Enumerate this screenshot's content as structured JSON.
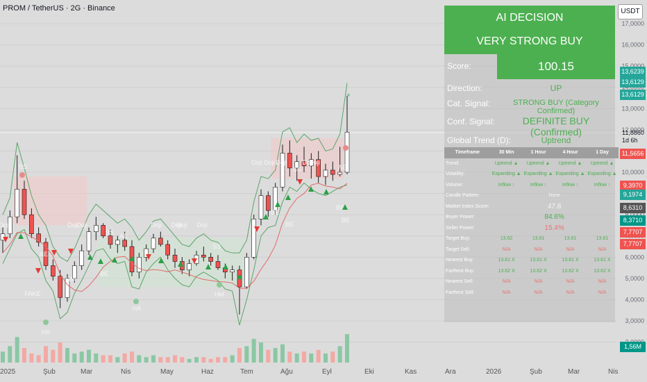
{
  "header": {
    "title": "PROM / TetherUS · 2G · Binance",
    "currency": "USDT"
  },
  "price_axis": {
    "labels": [
      "17,0000",
      "16,0000",
      "15,0000",
      "14,0000",
      "13,0000",
      "12,0000",
      "11,0000",
      "10,0000",
      "9,0000",
      "8,0000",
      "7,0000",
      "6,0000",
      "5,0000",
      "4,0000",
      "3,0000",
      "2,0000"
    ],
    "tags": [
      {
        "text": "13,6239",
        "color": "#26a69a"
      },
      {
        "text": "13,6129",
        "color": "#26a69a"
      },
      {
        "text": "13,6129",
        "color": "#26a69a"
      },
      {
        "text": "11,8860",
        "color": "plain"
      },
      {
        "text": "1d 6h",
        "color": "plain"
      },
      {
        "text": "11,5656",
        "color": "#ef5350"
      },
      {
        "text": "9,3970",
        "color": "#ef5350"
      },
      {
        "text": "9,1974",
        "color": "#26a69a"
      },
      {
        "text": "8,6310",
        "color": "#555555"
      },
      {
        "text": "8,3710",
        "color": "#009688"
      },
      {
        "text": "7,7707",
        "color": "#ef5350"
      },
      {
        "text": "7,7707",
        "color": "#ef5350"
      },
      {
        "text": "1,56M",
        "color": "#009688"
      }
    ]
  },
  "time_axis": [
    "2025",
    "Şub",
    "Mar",
    "Nis",
    "May",
    "Haz",
    "Tem",
    "Ağu",
    "Eyl",
    "Eki",
    "Kas",
    "Ara",
    "2026",
    "Şub",
    "Mar",
    "Nis"
  ],
  "ai_panel": {
    "title": "AI DECISION",
    "decision": "VERY STRONG BUY",
    "score_label": "Score:",
    "score_value": "100.15",
    "direction_label": "Direction:",
    "direction_value": "UP",
    "cat_label": "Cat. Signal:",
    "cat_value": "STRONG BUY (Category Confirmed)",
    "conf_label": "Conf. Signal:",
    "conf_value": "DEFINITE BUY (Confirmed)",
    "global_label": "Global Trend (D):",
    "global_value": "Uptrend",
    "table": {
      "headers": [
        "Timeframe",
        "30 Min",
        "1 Hour",
        "4 Hour",
        "1 Day"
      ],
      "trend": [
        "Trend:",
        "Uptrend ▲",
        "Uptrend ▲",
        "Uptrend ▲",
        "Uptrend ▲"
      ],
      "volatility": [
        "Volatility:",
        "Expanding ▲",
        "Expanding ▲",
        "Expanding ▲",
        "Expanding ▲"
      ],
      "volume": [
        "Volume:",
        "Inflow ↑",
        "Inflow ↑",
        "Inflow ↑",
        "Inflow ↑"
      ],
      "candle": [
        "Candle Pattern:",
        "None"
      ],
      "market_index": [
        "Market Index Score:",
        "47.8"
      ],
      "buyer": [
        "Buyer Power:",
        "84.6%"
      ],
      "seller": [
        "Seller Power:",
        "15.4%"
      ],
      "target_buy": [
        "Target Buy:",
        "13.62",
        "13.61",
        "13.61",
        "13.61"
      ],
      "target_sell": [
        "Target Sell:",
        "N/A",
        "N/A",
        "N/A",
        "N/A"
      ],
      "nearest_buy": [
        "Nearest Buy:",
        "13.61 X",
        "13.61 X",
        "13.61 X",
        "13.61 X"
      ],
      "farthest_buy": [
        "Farthest Buy:",
        "13.62 X",
        "13.62 X",
        "13.62 X",
        "13.62 X"
      ],
      "nearest_sell": [
        "Nearest Sell:",
        "N/A",
        "N/A",
        "N/A",
        "N/A"
      ],
      "farthest_sell": [
        "Farthest Sell:",
        "N/A",
        "N/A",
        "N/A",
        "N/A"
      ]
    }
  },
  "annotations": {
    "doji": "Doji",
    "ss": "SS",
    "ae": "AE",
    "be": "BE",
    "hm": "HM",
    "fake": "FAKE",
    "ha": "HA"
  },
  "chart_data": {
    "type": "candlestick",
    "title": "PROM / TetherUS · 2G · Binance",
    "y_unit": "USDT",
    "ylim": [
      2.0,
      17.5
    ],
    "x_range": [
      "2025-01",
      "2026-04"
    ],
    "last_price": 11.886,
    "markers": {
      "score": 100.15
    },
    "key_prices": [
      13.6239,
      13.6129,
      11.5656,
      9.397,
      9.1974,
      8.631,
      8.371,
      7.7707
    ],
    "ohlc_approx": [
      [
        6.8,
        7.4,
        6.2,
        7.1
      ],
      [
        7.1,
        8.2,
        6.9,
        7.9
      ],
      [
        7.9,
        10.8,
        7.6,
        9.2
      ],
      [
        9.2,
        9.6,
        7.8,
        8.0
      ],
      [
        8.0,
        8.3,
        6.9,
        7.1
      ],
      [
        7.1,
        7.4,
        6.5,
        6.7
      ],
      [
        6.7,
        6.9,
        5.4,
        5.6
      ],
      [
        5.6,
        5.9,
        4.9,
        5.1
      ],
      [
        5.1,
        5.4,
        3.6,
        4.1
      ],
      [
        4.1,
        5.2,
        3.9,
        5.0
      ],
      [
        5.0,
        5.8,
        4.8,
        5.6
      ],
      [
        5.6,
        6.6,
        5.4,
        6.3
      ],
      [
        6.3,
        7.4,
        6.1,
        7.2
      ],
      [
        7.2,
        7.9,
        6.8,
        7.5
      ],
      [
        7.5,
        7.6,
        6.9,
        7.0
      ],
      [
        7.0,
        7.3,
        6.4,
        6.6
      ],
      [
        6.6,
        7.0,
        6.2,
        6.8
      ],
      [
        6.8,
        7.2,
        6.3,
        6.5
      ],
      [
        6.5,
        6.8,
        5.1,
        5.3
      ],
      [
        5.3,
        6.2,
        5.0,
        6.0
      ],
      [
        6.0,
        6.6,
        5.8,
        6.4
      ],
      [
        6.4,
        7.1,
        6.2,
        6.9
      ],
      [
        6.9,
        7.2,
        6.5,
        6.6
      ],
      [
        6.6,
        6.8,
        5.9,
        6.1
      ],
      [
        6.1,
        6.4,
        5.5,
        5.8
      ],
      [
        5.8,
        6.0,
        5.2,
        5.4
      ],
      [
        5.4,
        5.9,
        5.1,
        5.7
      ],
      [
        5.7,
        6.3,
        5.6,
        6.1
      ],
      [
        6.1,
        6.5,
        5.8,
        6.0
      ],
      [
        6.0,
        6.2,
        5.6,
        5.8
      ],
      [
        5.8,
        6.1,
        5.4,
        5.5
      ],
      [
        5.5,
        5.7,
        5.0,
        5.3
      ],
      [
        5.3,
        5.6,
        4.9,
        5.4
      ],
      [
        5.4,
        5.6,
        3.3,
        4.6
      ],
      [
        4.6,
        6.2,
        4.5,
        6.0
      ],
      [
        6.0,
        8.0,
        5.9,
        7.8
      ],
      [
        7.8,
        9.2,
        7.5,
        8.9
      ],
      [
        8.9,
        9.1,
        7.9,
        8.2
      ],
      [
        8.2,
        9.5,
        8.0,
        9.3
      ],
      [
        9.3,
        11.3,
        9.1,
        10.9
      ],
      [
        10.9,
        11.5,
        9.8,
        10.2
      ],
      [
        10.2,
        10.8,
        9.6,
        10.5
      ],
      [
        10.5,
        11.2,
        10.0,
        10.3
      ],
      [
        10.3,
        10.9,
        9.7,
        10.6
      ],
      [
        10.6,
        11.0,
        9.5,
        9.8
      ],
      [
        9.8,
        10.4,
        9.4,
        10.1
      ],
      [
        10.1,
        10.5,
        9.6,
        9.9
      ],
      [
        9.9,
        11.2,
        9.8,
        10.0
      ],
      [
        10.0,
        13.6,
        9.9,
        11.89
      ]
    ],
    "volume_approx": [
      0.6,
      0.9,
      1.4,
      0.8,
      0.5,
      0.4,
      0.9,
      0.7,
      1.1,
      0.8,
      0.5,
      0.6,
      0.7,
      0.5,
      0.4,
      0.4,
      0.3,
      0.5,
      0.6,
      0.4,
      0.3,
      0.4,
      0.3,
      0.3,
      0.4,
      0.3,
      0.2,
      0.3,
      0.3,
      0.2,
      0.3,
      0.3,
      0.4,
      0.8,
      0.9,
      1.3,
      1.1,
      0.7,
      0.8,
      1.0,
      0.6,
      0.5,
      0.6,
      0.5,
      0.7,
      0.5,
      0.6,
      0.9,
      1.56
    ]
  }
}
